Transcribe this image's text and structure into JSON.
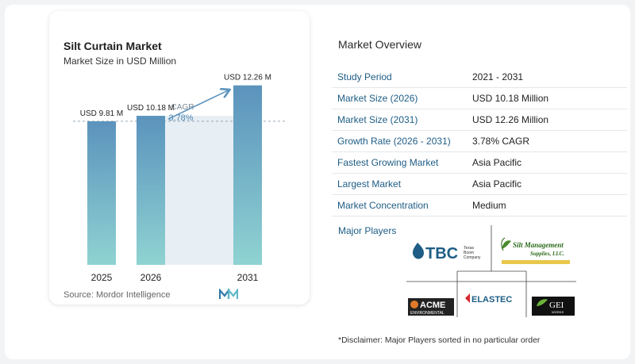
{
  "chart_data": {
    "type": "bar",
    "title": "Silt Curtain Market",
    "subtitle": "Market Size in USD Million",
    "categories": [
      "2025",
      "2026",
      "2031"
    ],
    "values": [
      9.81,
      10.18,
      12.26
    ],
    "data_labels": [
      "USD 9.81 M",
      "USD 10.18 M",
      "USD 12.26 M"
    ],
    "cagr_label": "CAGR",
    "cagr_value": "3.78%",
    "ylim": [
      0,
      13
    ],
    "colors": {
      "bar_top": "#5b93bd",
      "bar_bottom": "#8fd3d2",
      "band": "#e7eef4",
      "arrow": "#5b93bd"
    },
    "grid": false
  },
  "source": "Source: Mordor Intelligence",
  "overview": {
    "title": "Market Overview",
    "rows": [
      {
        "label": "Study Period",
        "value": "2021 - 2031"
      },
      {
        "label": "Market Size (2026)",
        "value": "USD 10.18 Million"
      },
      {
        "label": "Market Size (2031)",
        "value": "USD 12.26 Million"
      },
      {
        "label": "Growth Rate (2026 - 2031)",
        "value": "3.78% CAGR"
      },
      {
        "label": "Fastest Growing Market",
        "value": "Asia Pacific"
      },
      {
        "label": "Largest Market",
        "value": "Asia Pacific"
      },
      {
        "label": "Market Concentration",
        "value": "Medium"
      }
    ]
  },
  "players": {
    "label": "Major Players",
    "logos": [
      {
        "name": "tbc-logo",
        "text": "TBC",
        "subtext": "Texas Boom Company"
      },
      {
        "name": "silt-management-logo",
        "text": "Silt Management",
        "subtext": "Supplies, LLC."
      },
      {
        "name": "acme-logo",
        "text": "ACME",
        "subtext": "ENVIRONMENTAL"
      },
      {
        "name": "elastec-logo",
        "text": "ELASTEC"
      },
      {
        "name": "gei-logo",
        "text": "GEI",
        "subtext": "WORKS"
      }
    ]
  },
  "disclaimer": "*Disclaimer: Major Players sorted in no particular order"
}
